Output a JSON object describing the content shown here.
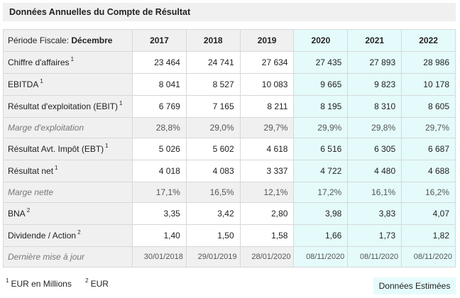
{
  "title": "Données Annuelles du Compte de Résultat",
  "table": {
    "period_label": "Période Fiscale:",
    "period_value": "Décembre",
    "years": [
      "2017",
      "2018",
      "2019",
      "2020",
      "2021",
      "2022"
    ],
    "estimated_from_index": 3,
    "rows": [
      {
        "label": "Chiffre d'affaires",
        "note": "1",
        "style": "normal",
        "values": [
          "23 464",
          "24 741",
          "27 634",
          "27 435",
          "27 893",
          "28 986"
        ]
      },
      {
        "label": "EBITDA",
        "note": "1",
        "style": "normal",
        "values": [
          "8 041",
          "8 527",
          "10 083",
          "9 665",
          "9 823",
          "10 178"
        ]
      },
      {
        "label": "Résultat d'exploitation (EBIT)",
        "note": "1",
        "style": "normal",
        "values": [
          "6 769",
          "7 165",
          "8 211",
          "8 195",
          "8 310",
          "8 605"
        ]
      },
      {
        "label": "Marge d'exploitation",
        "note": "",
        "style": "alt",
        "values": [
          "28,8%",
          "29,0%",
          "29,7%",
          "29,9%",
          "29,8%",
          "29,7%"
        ]
      },
      {
        "label": "Résultat Avt. Impôt (EBT)",
        "note": "1",
        "style": "normal",
        "values": [
          "5 026",
          "5 602",
          "4 618",
          "6 516",
          "6 305",
          "6 687"
        ]
      },
      {
        "label": "Résultat net",
        "note": "1",
        "style": "normal",
        "values": [
          "4 018",
          "4 083",
          "3 337",
          "4 722",
          "4 480",
          "4 688"
        ]
      },
      {
        "label": "Marge nette",
        "note": "",
        "style": "alt",
        "values": [
          "17,1%",
          "16,5%",
          "12,1%",
          "17,2%",
          "16,1%",
          "16,2%"
        ]
      },
      {
        "label": "BNA",
        "note": "2",
        "style": "normal",
        "values": [
          "3,35",
          "3,42",
          "2,80",
          "3,98",
          "3,83",
          "4,07"
        ]
      },
      {
        "label": "Dividende / Action",
        "note": "2",
        "style": "normal",
        "values": [
          "1,40",
          "1,50",
          "1,58",
          "1,66",
          "1,73",
          "1,82"
        ]
      },
      {
        "label": "Dernière mise à jour",
        "note": "",
        "style": "dates",
        "values": [
          "30/01/2018",
          "29/01/2019",
          "28/01/2020",
          "08/11/2020",
          "08/11/2020",
          "08/11/2020"
        ]
      }
    ]
  },
  "footnotes": [
    {
      "mark": "1",
      "text": "EUR en Millions"
    },
    {
      "mark": "2",
      "text": "EUR"
    }
  ],
  "estimates_label": "Données Estimées",
  "colors": {
    "header_gray": "#f0f0f0",
    "estimate_cyan": "#e5fbfb",
    "border": "#d8d8d8"
  }
}
